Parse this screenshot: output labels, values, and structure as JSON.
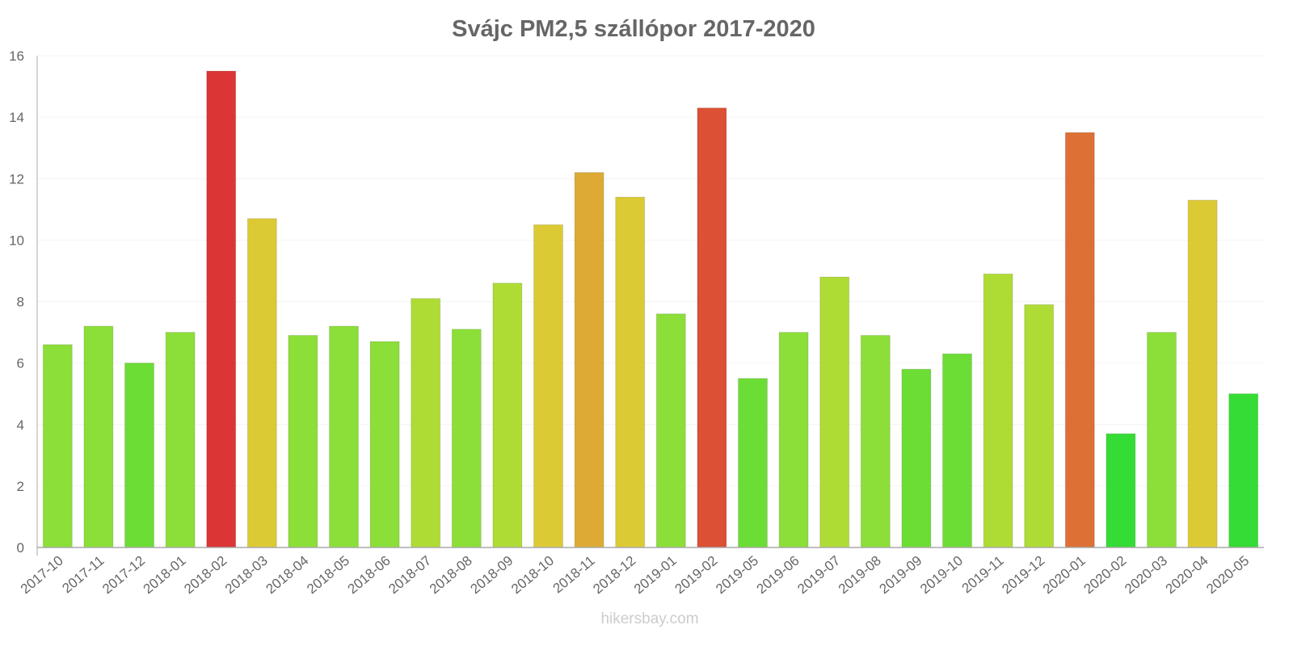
{
  "chart_data": {
    "type": "bar",
    "title": "Svájc PM2,5 szállópor 2017-2020",
    "xlabel": "",
    "ylabel": "",
    "ylim": [
      0,
      16
    ],
    "yticks": [
      "0",
      "2",
      "4",
      "6",
      "8",
      "10",
      "12",
      "14",
      "16"
    ],
    "grid": true,
    "categories": [
      "2017-10",
      "2017-11",
      "2017-12",
      "2018-01",
      "2018-02",
      "2018-03",
      "2018-04",
      "2018-05",
      "2018-06",
      "2018-07",
      "2018-08",
      "2018-09",
      "2018-10",
      "2018-11",
      "2018-12",
      "2019-01",
      "2019-02",
      "2019-05",
      "2019-06",
      "2019-07",
      "2019-08",
      "2019-09",
      "2019-10",
      "2019-11",
      "2019-12",
      "2020-01",
      "2020-02",
      "2020-03",
      "2020-04",
      "2020-05"
    ],
    "values": [
      6.6,
      7.2,
      6.0,
      7.0,
      15.5,
      10.7,
      6.9,
      7.2,
      6.7,
      8.1,
      7.1,
      8.6,
      10.5,
      12.2,
      11.4,
      7.6,
      14.3,
      5.5,
      7.0,
      8.8,
      6.9,
      5.8,
      6.3,
      8.9,
      7.9,
      13.5,
      3.7,
      7.0,
      11.3,
      5.0
    ],
    "colors": [
      "#8cde38",
      "#8cde38",
      "#6cdd35",
      "#8cde38",
      "#dc3535",
      "#dcca35",
      "#8cde38",
      "#8cde38",
      "#8cde38",
      "#aedc35",
      "#8cde38",
      "#aedc35",
      "#dcca35",
      "#dcaa35",
      "#dcca35",
      "#8cde38",
      "#dc5035",
      "#6cdd35",
      "#8cde38",
      "#aedc35",
      "#8cde38",
      "#6cdd35",
      "#6cdd35",
      "#aedc35",
      "#aedc35",
      "#dc7035",
      "#35dc35",
      "#8cde38",
      "#dcca35",
      "#35dc35"
    ]
  },
  "footer": "hikersbay.com"
}
